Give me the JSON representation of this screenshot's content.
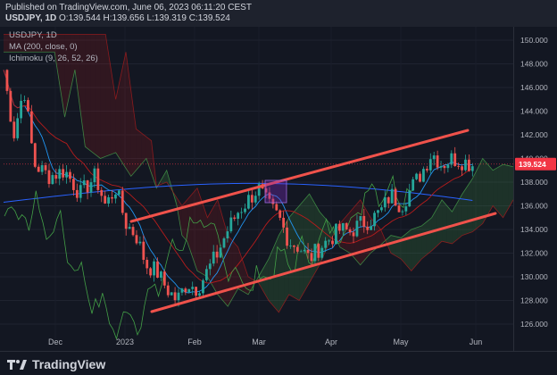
{
  "header": {
    "published": "Published on TradingView.com, June 06, 2023 06:11:20 CEST",
    "symbol": "USDJPY, 1D",
    "ohlc": "O:139.544 H:139.656 L:139.319 C:139.524"
  },
  "indicators": {
    "symbol_tf": "USDJPY, 1D",
    "ma": "MA (200, close, 0)",
    "ichimoku": "Ichimoku (9, 26, 52, 26)"
  },
  "price_axis": {
    "ticks": [
      "150.000",
      "148.000",
      "146.000",
      "144.000",
      "142.000",
      "140.000",
      "138.000",
      "136.000",
      "134.000",
      "132.000",
      "130.000",
      "128.000",
      "126.000"
    ],
    "current_price": "139.524",
    "current_color": "#f23645"
  },
  "time_axis": {
    "ticks": [
      "Dec",
      "2023",
      "Feb",
      "Mar",
      "Apr",
      "May",
      "Jun"
    ]
  },
  "colors": {
    "up": "#26a69a",
    "down": "#ef5350",
    "channel": "#f0524b",
    "ma": "#2962ff",
    "tenkan": "#2196f3",
    "kijun": "#b71c1c",
    "chikou": "#43a047",
    "span_a": "#4caf50",
    "span_b": "#b71c1c"
  },
  "footer": {
    "brand": "TradingView"
  }
}
